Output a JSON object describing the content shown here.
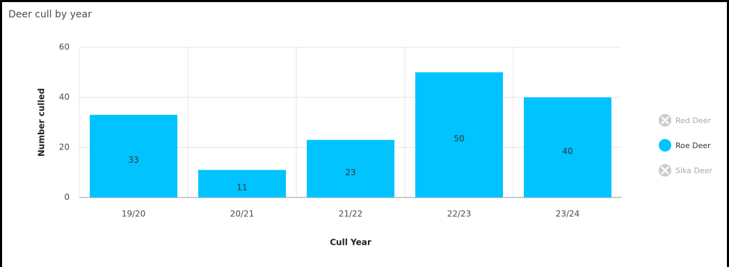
{
  "chart_data": {
    "type": "bar",
    "title": "Deer cull by year",
    "x_label": "Cull Year",
    "y_label": "Number culled",
    "categories": [
      "19/20",
      "20/21",
      "21/22",
      "22/23",
      "23/24"
    ],
    "series": [
      {
        "name": "Red Deer",
        "color": "#cccccc",
        "visible": false,
        "values": [
          null,
          null,
          null,
          null,
          null
        ]
      },
      {
        "name": "Roe Deer",
        "color": "#00c3ff",
        "visible": true,
        "values": [
          33,
          11,
          23,
          50,
          40
        ]
      },
      {
        "name": "Sika Deer",
        "color": "#cccccc",
        "visible": false,
        "values": [
          null,
          null,
          null,
          null,
          null
        ]
      }
    ],
    "ylim": [
      0,
      60
    ],
    "yticks": [
      0,
      20,
      40,
      60
    ],
    "grid": true,
    "data_labels": true,
    "legend": "right"
  }
}
